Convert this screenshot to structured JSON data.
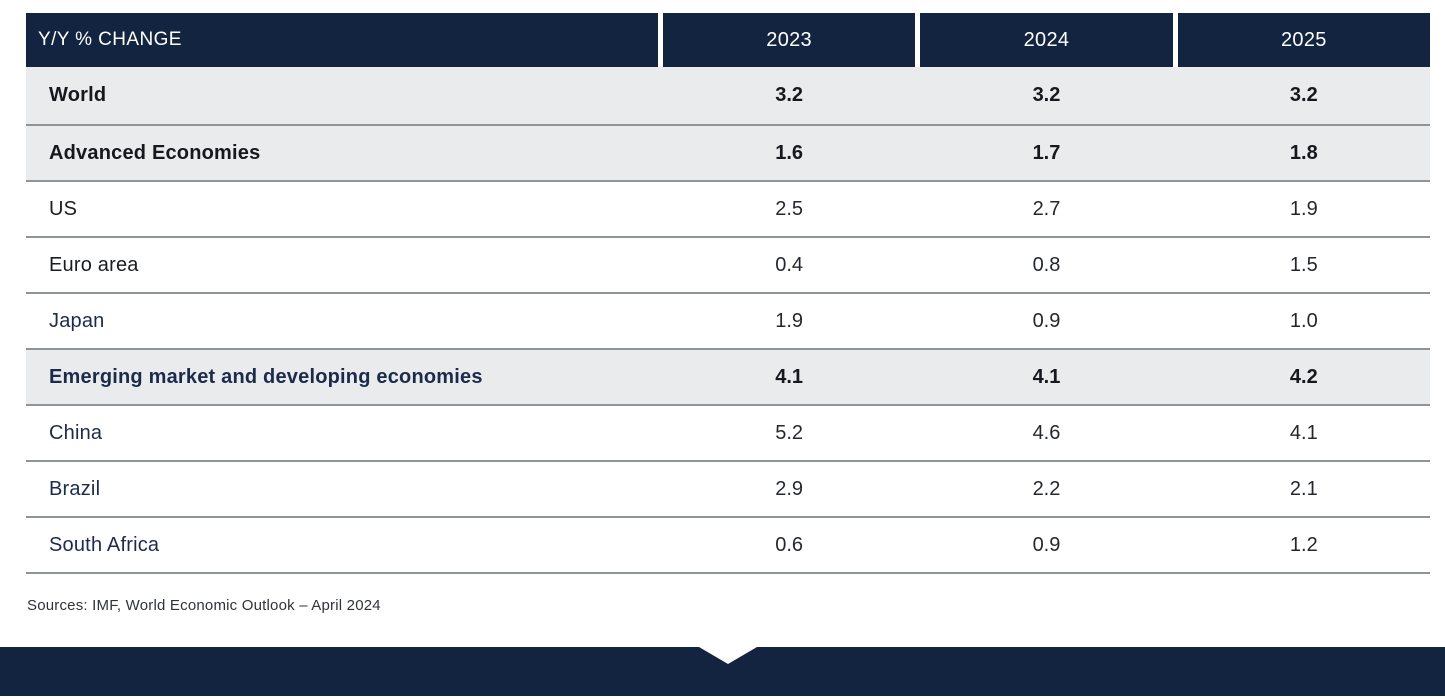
{
  "palette": {
    "navy": "#132440",
    "band": "#EAEBED",
    "separator": "#8F9499",
    "header_text": "#FFFFFF",
    "label_dark": "#1A1D21",
    "label_navy": "#1C2B4B",
    "value_dark": "#24282E",
    "value_bold": "#15181D",
    "source_text": "#2F3338"
  },
  "table": {
    "header": {
      "label": "Y/Y % CHANGE",
      "years": [
        "2023",
        "2024",
        "2025"
      ]
    },
    "rows": [
      {
        "label": "World",
        "values": [
          "3.2",
          "3.2",
          "3.2"
        ]
      },
      {
        "label": "Advanced Economies",
        "values": [
          "1.6",
          "1.7",
          "1.8"
        ]
      },
      {
        "label": "US",
        "values": [
          "2.5",
          "2.7",
          "1.9"
        ]
      },
      {
        "label": "Euro area",
        "values": [
          "0.4",
          "0.8",
          "1.5"
        ]
      },
      {
        "label": "Japan",
        "values": [
          "1.9",
          "0.9",
          "1.0"
        ]
      },
      {
        "label": "Emerging market and developing economies",
        "values": [
          "4.1",
          "4.1",
          "4.2"
        ]
      },
      {
        "label": "China",
        "values": [
          "5.2",
          "4.6",
          "4.1"
        ]
      },
      {
        "label": "Brazil",
        "values": [
          "2.9",
          "2.2",
          "2.1"
        ]
      },
      {
        "label": "South Africa",
        "values": [
          "0.6",
          "0.9",
          "1.2"
        ]
      }
    ]
  },
  "source": "Sources: IMF, World Economic Outlook – April 2024",
  "chart_data": {
    "type": "table",
    "title": "Y/Y % CHANGE",
    "columns": [
      "2023",
      "2024",
      "2025"
    ],
    "rows": [
      {
        "label": "World",
        "values": [
          3.2,
          3.2,
          3.2
        ],
        "emphasis": true
      },
      {
        "label": "Advanced Economies",
        "values": [
          1.6,
          1.7,
          1.8
        ],
        "emphasis": true
      },
      {
        "label": "US",
        "values": [
          2.5,
          2.7,
          1.9
        ],
        "emphasis": false
      },
      {
        "label": "Euro area",
        "values": [
          0.4,
          0.8,
          1.5
        ],
        "emphasis": false
      },
      {
        "label": "Japan",
        "values": [
          1.9,
          0.9,
          1.0
        ],
        "emphasis": false
      },
      {
        "label": "Emerging market and developing economies",
        "values": [
          4.1,
          4.1,
          4.2
        ],
        "emphasis": true
      },
      {
        "label": "China",
        "values": [
          5.2,
          4.6,
          4.1
        ],
        "emphasis": false
      },
      {
        "label": "Brazil",
        "values": [
          2.9,
          2.2,
          2.1
        ],
        "emphasis": false
      },
      {
        "label": "South Africa",
        "values": [
          0.6,
          0.9,
          1.2
        ],
        "emphasis": false
      }
    ],
    "source": "Sources: IMF, World Economic Outlook – April 2024",
    "layout": {
      "header_bg": "#132440",
      "emphasis_row_bg": "#EAEBED",
      "footer_bar": true
    }
  }
}
